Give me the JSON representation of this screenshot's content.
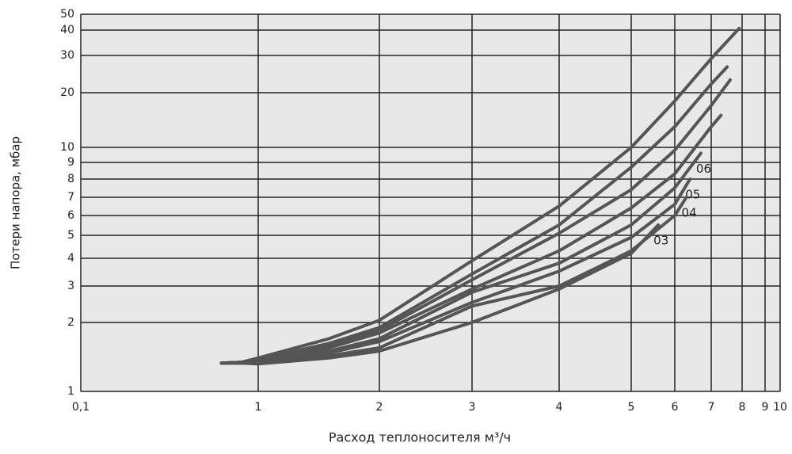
{
  "chart_data": {
    "type": "line",
    "y_label": "Потери напора, мбар",
    "x_label": "Расход теплоносителя м³/ч",
    "log_scale": true,
    "grid": true,
    "xlim": [
      0.1,
      10
    ],
    "ylim": [
      1,
      50
    ],
    "xticks": [
      {
        "value": 0.1,
        "label": "0,1"
      },
      1,
      2,
      3,
      4,
      5,
      6,
      7,
      8,
      9,
      10
    ],
    "yticks": [
      1,
      2,
      3,
      4,
      5,
      6,
      7,
      8,
      9,
      10,
      20,
      30,
      40,
      50
    ],
    "series": [
      {
        "color": "#555555",
        "x": [
          0.62,
          0.8,
          1,
          1.5,
          2,
          3,
          4,
          5,
          6,
          7,
          7.9
        ],
        "values": [
          1.33,
          1.34,
          1.4,
          1.7,
          2.05,
          3.9,
          6.5,
          10,
          18,
          29,
          41
        ]
      },
      {
        "color": "#555555",
        "x": [
          0.62,
          0.8,
          1,
          1.5,
          2,
          3,
          4,
          5,
          6,
          7,
          7.5
        ],
        "values": [
          1.33,
          1.34,
          1.38,
          1.62,
          1.9,
          3.4,
          5.5,
          8.7,
          13,
          22,
          26.5
        ]
      },
      {
        "color": "#555555",
        "x": [
          0.62,
          0.8,
          1,
          1.5,
          2,
          3,
          4,
          5,
          6,
          7,
          7.6
        ],
        "values": [
          1.33,
          1.34,
          1.37,
          1.58,
          1.85,
          3.2,
          5.1,
          7.4,
          9.8,
          17,
          23
        ]
      },
      {
        "color": "#555555",
        "x": [
          0.62,
          0.8,
          1,
          1.5,
          2,
          3,
          4,
          5,
          6,
          7,
          7.3
        ],
        "values": [
          1.33,
          1.34,
          1.36,
          1.55,
          1.8,
          2.9,
          4.3,
          6.4,
          8.3,
          13,
          15
        ]
      },
      {
        "name": "06",
        "color": "#555555",
        "x": [
          0.62,
          0.8,
          1,
          1.5,
          2,
          3,
          4,
          5,
          6,
          6.7
        ],
        "values": [
          1.33,
          1.34,
          1.35,
          1.5,
          1.7,
          2.8,
          3.8,
          5.5,
          7.5,
          9.6
        ]
      },
      {
        "name": "05",
        "color": "#555555",
        "x": [
          0.62,
          0.8,
          1,
          1.5,
          2,
          3,
          4,
          5,
          6,
          6.4
        ],
        "values": [
          1.33,
          1.33,
          1.34,
          1.47,
          1.65,
          2.5,
          3.5,
          4.9,
          6.6,
          8
        ]
      },
      {
        "name": "04",
        "color": "#555555",
        "x": [
          0.62,
          0.8,
          1,
          1.5,
          2,
          3,
          4,
          5,
          6,
          6.3
        ],
        "values": [
          1.33,
          1.33,
          1.33,
          1.43,
          1.55,
          2.4,
          3,
          4.3,
          6,
          7
        ]
      },
      {
        "name": "03",
        "color": "#555555",
        "x": [
          0.62,
          0.8,
          1,
          1.5,
          2,
          3,
          4,
          5,
          5.6
        ],
        "values": [
          1.33,
          1.33,
          1.32,
          1.4,
          1.5,
          2,
          2.9,
          4.2,
          5.5
        ]
      }
    ]
  }
}
